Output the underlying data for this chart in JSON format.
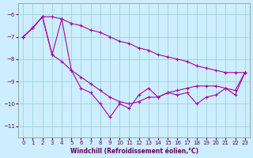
{
  "xlabel": "Windchill (Refroidissement éolien,°C)",
  "bg_color": "#cceeff",
  "grid_color": "#99cccc",
  "line_color": "#aa00aa",
  "x_values": [
    0,
    1,
    2,
    3,
    4,
    5,
    6,
    7,
    8,
    9,
    10,
    11,
    12,
    13,
    14,
    15,
    16,
    17,
    18,
    19,
    20,
    21,
    22,
    23
  ],
  "series_top": [
    -7.0,
    -6.6,
    -6.1,
    -6.1,
    -6.2,
    -6.4,
    -6.5,
    -6.7,
    -6.8,
    -7.0,
    -7.2,
    -7.3,
    -7.5,
    -7.6,
    -7.8,
    -7.9,
    -8.0,
    -8.1,
    -8.3,
    -8.4,
    -8.5,
    -8.6,
    -8.6,
    -8.6
  ],
  "series_mid": [
    -7.0,
    -6.6,
    -6.1,
    -7.8,
    -8.1,
    -8.5,
    -8.8,
    -9.1,
    -9.4,
    -9.7,
    -9.9,
    -10.0,
    -9.9,
    -9.7,
    -9.7,
    -9.5,
    -9.4,
    -9.3,
    -9.2,
    -9.2,
    -9.2,
    -9.3,
    -9.4,
    -8.6
  ],
  "series_bot": [
    -7.0,
    -6.6,
    -6.1,
    -7.8,
    -6.2,
    -8.5,
    -9.3,
    -9.5,
    -10.0,
    -10.6,
    -10.0,
    -10.2,
    -9.6,
    -9.3,
    -9.7,
    -9.5,
    -9.6,
    -9.5,
    -10.0,
    -9.7,
    -9.6,
    -9.3,
    -9.6,
    -8.6
  ],
  "ylim": [
    -11.5,
    -5.5
  ],
  "xlim": [
    -0.5,
    23.5
  ],
  "yticks": [
    -11,
    -10,
    -9,
    -8,
    -7,
    -6
  ],
  "xticks": [
    0,
    1,
    2,
    3,
    4,
    5,
    6,
    7,
    8,
    9,
    10,
    11,
    12,
    13,
    14,
    15,
    16,
    17,
    18,
    19,
    20,
    21,
    22,
    23
  ]
}
